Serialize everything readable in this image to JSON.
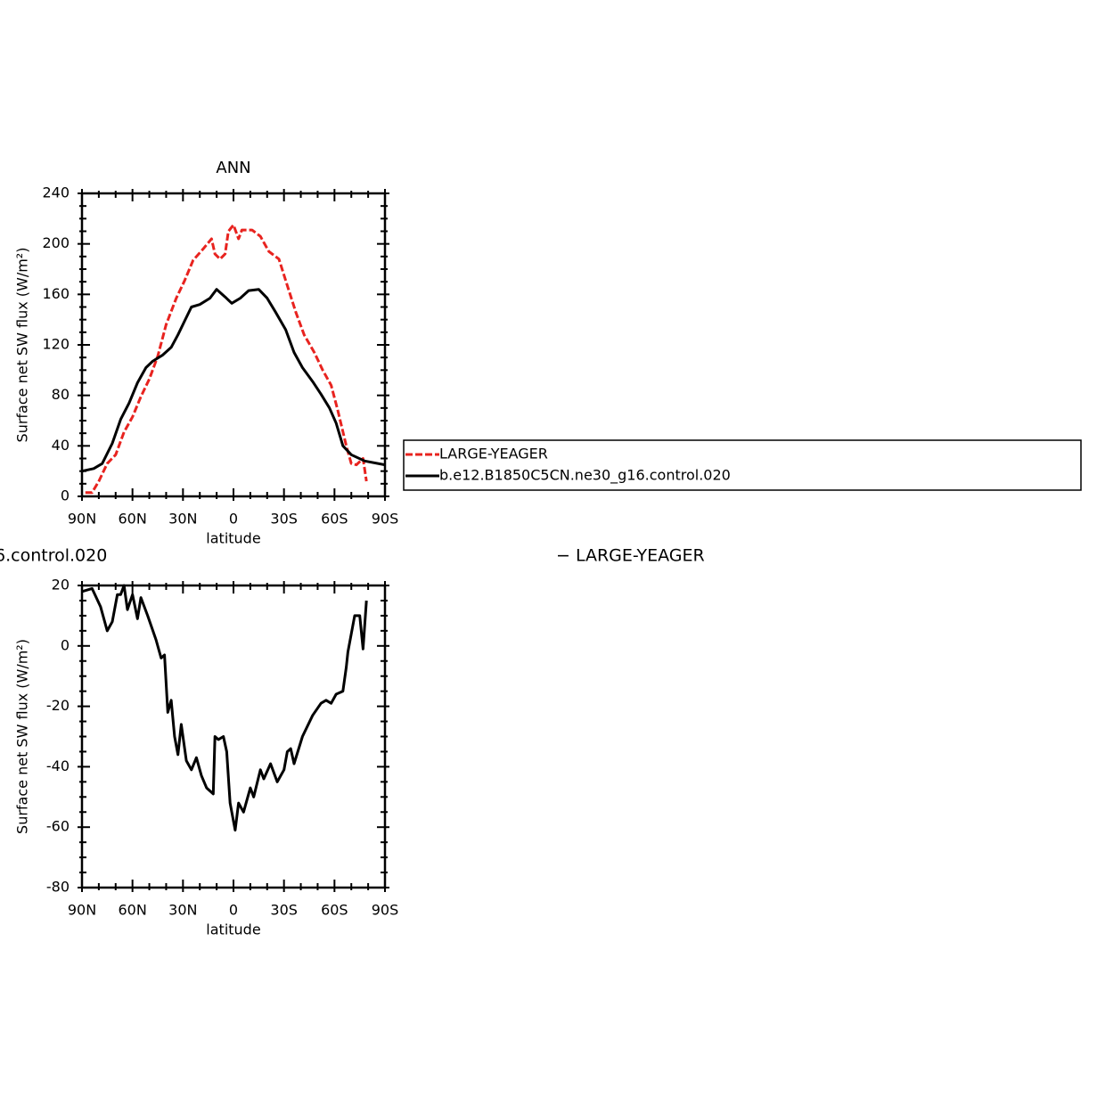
{
  "chart_data": [
    {
      "type": "line",
      "title": "ANN",
      "xlabel": "latitude",
      "ylabel": "Surface net SW flux (W/m²)",
      "xlim": [
        90,
        -90
      ],
      "xticks": [
        {
          "value": 90,
          "label": "90N"
        },
        {
          "value": 60,
          "label": "60N"
        },
        {
          "value": 30,
          "label": "30N"
        },
        0,
        {
          "value": -30,
          "label": "30S"
        },
        {
          "value": -60,
          "label": "60S"
        },
        {
          "value": -90,
          "label": "90S"
        }
      ],
      "xticks_minor": [
        80,
        70,
        50,
        40,
        20,
        10,
        -10,
        -20,
        -40,
        -50,
        -70,
        -80
      ],
      "ylim": [
        0,
        240
      ],
      "yticks": [
        0,
        40,
        80,
        120,
        160,
        200,
        240
      ],
      "yticks_minor": [
        10,
        20,
        30,
        50,
        60,
        70,
        90,
        100,
        110,
        130,
        140,
        150,
        170,
        180,
        190,
        210,
        220,
        230
      ],
      "series": [
        {
          "name": "LARGE-YEAGER",
          "color": "#e8231f",
          "dashed": true,
          "x": [
            88,
            84,
            80,
            75,
            70,
            65,
            60,
            55,
            50,
            45,
            40,
            34,
            29,
            24,
            18,
            13,
            11,
            8,
            5,
            3,
            0,
            -3,
            -5,
            -11,
            -16,
            -21,
            -27,
            -32,
            -37,
            -42,
            -48,
            -53,
            -58,
            -62,
            -67,
            -70,
            -73,
            -77,
            -79
          ],
          "values": [
            3,
            3,
            12,
            26,
            33,
            51,
            63,
            79,
            93,
            111,
            136,
            157,
            171,
            187,
            196,
            204,
            192,
            188,
            192,
            210,
            215,
            204,
            211,
            211,
            206,
            194,
            188,
            167,
            146,
            128,
            114,
            100,
            88,
            68,
            40,
            26,
            25,
            30,
            12
          ]
        },
        {
          "name": "b.e12.B1850C5CN.ne30_g16.control.020",
          "color": "#000000",
          "dashed": false,
          "x": [
            90,
            83,
            78,
            72,
            67,
            62,
            57,
            52,
            48,
            42,
            37,
            33,
            29,
            25,
            20,
            14,
            10,
            5,
            1,
            -4,
            -9,
            -15,
            -20,
            -25,
            -31,
            -36,
            -41,
            -47,
            -52,
            -57,
            -61,
            -65,
            -70,
            -78,
            -90
          ],
          "values": [
            20,
            22,
            26,
            42,
            61,
            74,
            90,
            102,
            107,
            112,
            118,
            128,
            139,
            150,
            152,
            157,
            164,
            158,
            153,
            157,
            163,
            164,
            157,
            146,
            132,
            114,
            102,
            91,
            81,
            70,
            58,
            40,
            33,
            28,
            25
          ]
        }
      ]
    },
    {
      "type": "line",
      "annotations": [
        "6.control.020",
        "− LARGE-YEAGER"
      ],
      "xlabel": "latitude",
      "ylabel": "Surface net SW flux (W/m²)",
      "xlim": [
        90,
        -90
      ],
      "xticks": [
        {
          "value": 90,
          "label": "90N"
        },
        {
          "value": 60,
          "label": "60N"
        },
        {
          "value": 30,
          "label": "30N"
        },
        0,
        {
          "value": -30,
          "label": "30S"
        },
        {
          "value": -60,
          "label": "60S"
        },
        {
          "value": -90,
          "label": "90S"
        }
      ],
      "xticks_minor": [
        80,
        70,
        50,
        40,
        20,
        10,
        -10,
        -20,
        -40,
        -50,
        -70,
        -80
      ],
      "ylim": [
        -80,
        20
      ],
      "yticks": [
        -80,
        -60,
        -40,
        -20,
        0,
        20
      ],
      "yticks_minor": [
        -75,
        -70,
        -65,
        -55,
        -50,
        -45,
        -35,
        -30,
        -25,
        -15,
        -10,
        -5,
        5,
        10,
        15
      ],
      "series": [
        {
          "color": "#000000",
          "dashed": false,
          "x": [
            90,
            84,
            79,
            75,
            72,
            69,
            67,
            65,
            63,
            60,
            57,
            55,
            51,
            46,
            43,
            41,
            39,
            37,
            35,
            33,
            31,
            28,
            25,
            22,
            19,
            16,
            12,
            11,
            9,
            6,
            4,
            2,
            -1,
            -3,
            -6,
            -10,
            -12,
            -16,
            -18,
            -22,
            -26,
            -30,
            -32,
            -34,
            -36,
            -41,
            -47,
            -52,
            -55,
            -58,
            -61,
            -65,
            -67,
            -68,
            -72,
            -75,
            -77,
            -79
          ],
          "values": [
            18,
            19,
            13,
            5,
            8,
            17,
            17,
            20,
            12,
            17,
            9,
            16,
            10,
            2,
            -4,
            -3,
            -22,
            -18,
            -30,
            -36,
            -26,
            -38,
            -41,
            -37,
            -43,
            -47,
            -49,
            -30,
            -31,
            -30,
            -35,
            -52,
            -61,
            -52,
            -55,
            -47,
            -50,
            -41,
            -44,
            -39,
            -45,
            -41,
            -35,
            -34,
            -39,
            -30,
            -23,
            -19,
            -18,
            -19,
            -16,
            -15,
            -7,
            -2,
            10,
            10,
            -1,
            15
          ]
        }
      ]
    }
  ]
}
